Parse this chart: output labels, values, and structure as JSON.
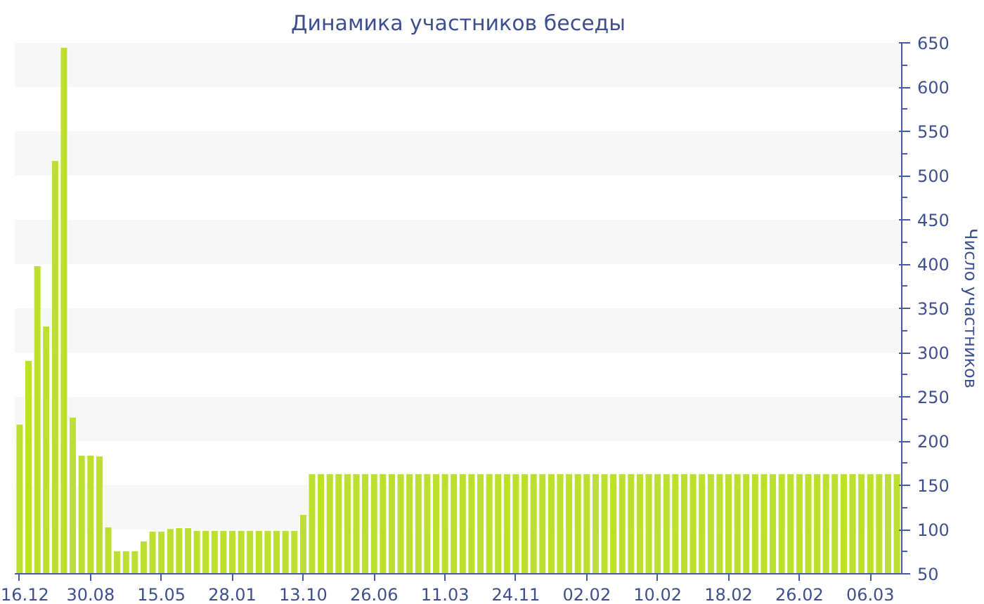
{
  "chart_data": {
    "type": "bar",
    "title": "Динамика участников беседы",
    "ylabel": "Число участников",
    "categories": [
      "16.12",
      null,
      null,
      null,
      null,
      null,
      null,
      null,
      "30.08",
      null,
      null,
      null,
      null,
      null,
      null,
      null,
      "15.05",
      null,
      null,
      null,
      null,
      null,
      null,
      null,
      "28.01",
      null,
      null,
      null,
      null,
      null,
      null,
      null,
      "13.10",
      null,
      null,
      null,
      null,
      null,
      null,
      null,
      "26.06",
      null,
      null,
      null,
      null,
      null,
      null,
      null,
      "11.03",
      null,
      null,
      null,
      null,
      null,
      null,
      null,
      "24.11",
      null,
      null,
      null,
      null,
      null,
      null,
      null,
      "02.02",
      null,
      null,
      null,
      null,
      null,
      null,
      null,
      "10.02",
      null,
      null,
      null,
      null,
      null,
      null,
      null,
      "18.02",
      null,
      null,
      null,
      null,
      null,
      null,
      null,
      "26.02",
      null,
      null,
      null,
      null,
      null,
      null,
      null,
      "06.03",
      null,
      null,
      null
    ],
    "values": [
      219,
      291,
      398,
      330,
      517,
      645,
      227,
      184,
      184,
      183,
      103,
      76,
      76,
      76,
      87,
      98,
      98,
      101,
      102,
      102,
      99,
      99,
      99,
      99,
      99,
      99,
      99,
      99,
      99,
      99,
      99,
      99,
      117,
      163,
      163,
      163,
      163,
      163,
      163,
      163,
      163,
      163,
      163,
      163,
      163,
      163,
      163,
      163,
      163,
      163,
      163,
      163,
      163,
      163,
      163,
      163,
      163,
      163,
      163,
      163,
      163,
      163,
      163,
      163,
      163,
      163,
      163,
      163,
      163,
      163,
      163,
      163,
      163,
      163,
      163,
      163,
      163,
      163,
      163,
      163,
      163,
      163,
      163,
      163,
      163,
      163,
      163,
      163,
      163,
      163,
      163,
      163,
      163,
      163,
      163,
      163,
      163,
      163,
      163,
      163
    ],
    "color": "#bde02e",
    "ylim": [
      50,
      650
    ],
    "yticks": [
      50,
      100,
      150,
      200,
      250,
      300,
      350,
      400,
      450,
      500,
      550,
      600,
      650
    ],
    "bands": [
      {
        "axis": "y",
        "from": 100,
        "to": 150,
        "color": "#f7f7f7"
      },
      {
        "axis": "y",
        "from": 200,
        "to": 250,
        "color": "#f7f7f7"
      },
      {
        "axis": "y",
        "from": 300,
        "to": 350,
        "color": "#f7f7f7"
      },
      {
        "axis": "y",
        "from": 400,
        "to": 450,
        "color": "#f7f7f7"
      },
      {
        "axis": "y",
        "from": 500,
        "to": 550,
        "color": "#f7f7f7"
      },
      {
        "axis": "y",
        "from": 600,
        "to": 650,
        "color": "#f7f7f7"
      }
    ]
  }
}
